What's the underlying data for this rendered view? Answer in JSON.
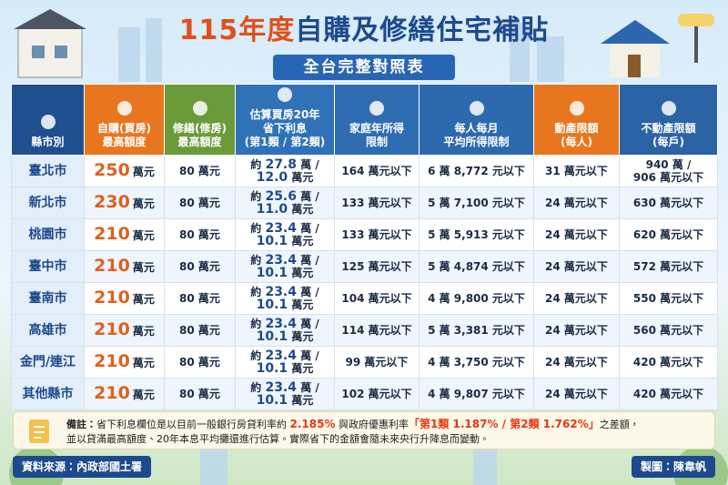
{
  "header": {
    "title": [
      "115年度",
      "自購及修繕住宅補貼"
    ],
    "subtitle": "全台完整對照表"
  },
  "table": {
    "columns": [
      [
        "縣市別"
      ],
      [
        "自購(買房)",
        "最高額度"
      ],
      [
        "修繕(修房)",
        "最高額度"
      ],
      [
        "估算買房20年",
        "省下利息",
        "(第1類 / 第2類)"
      ],
      [
        "家庭年所得",
        "限制"
      ],
      [
        "每人每月",
        "平均所得限制"
      ],
      [
        "動產限額",
        "(每人)"
      ],
      [
        "不動產限額",
        "(每戶)"
      ]
    ],
    "column_colors": [
      "#1f4f8f",
      "#e8761e",
      "#6b9a3b",
      "#2f72b8",
      "#2f6db2",
      "#2d69ad",
      "#e8761e",
      "#2b63a6"
    ],
    "rows": [
      {
        "city": "臺北市",
        "purchase": {
          "amount": "250",
          "unit": "萬元"
        },
        "repair": "80 萬元",
        "interest": {
          "prefix": "約",
          "first": "27.8",
          "first_unit": "萬 /",
          "second": "12.0",
          "second_unit": "萬元"
        },
        "household": "164 萬元以下",
        "monthly": "6 萬 8,772 元以下",
        "movable": "31 萬元以下",
        "immovable": [
          "940 萬 /",
          "906 萬元以下"
        ]
      },
      {
        "city": "新北市",
        "purchase": {
          "amount": "230",
          "unit": "萬元"
        },
        "repair": "80 萬元",
        "interest": {
          "prefix": "約",
          "first": "25.6",
          "first_unit": "萬 /",
          "second": "11.0",
          "second_unit": "萬元"
        },
        "household": "133 萬元以下",
        "monthly": "5 萬 7,100 元以下",
        "movable": "24 萬元以下",
        "immovable": [
          "630 萬元以下"
        ]
      },
      {
        "city": "桃園市",
        "purchase": {
          "amount": "210",
          "unit": "萬元"
        },
        "repair": "80 萬元",
        "interest": {
          "prefix": "約",
          "first": "23.4",
          "first_unit": "萬 /",
          "second": "10.1",
          "second_unit": "萬元"
        },
        "household": "133 萬元以下",
        "monthly": "5 萬 5,913 元以下",
        "movable": "24 萬元以下",
        "immovable": [
          "620 萬元以下"
        ]
      },
      {
        "city": "臺中市",
        "purchase": {
          "amount": "210",
          "unit": "萬元"
        },
        "repair": "80 萬元",
        "interest": {
          "prefix": "約",
          "first": "23.4",
          "first_unit": "萬 /",
          "second": "10.1",
          "second_unit": "萬元"
        },
        "household": "125 萬元以下",
        "monthly": "5 萬 4,874 元以下",
        "movable": "24 萬元以下",
        "immovable": [
          "572 萬元以下"
        ]
      },
      {
        "city": "臺南市",
        "purchase": {
          "amount": "210",
          "unit": "萬元"
        },
        "repair": "80 萬元",
        "interest": {
          "prefix": "約",
          "first": "23.4",
          "first_unit": "萬 /",
          "second": "10.1",
          "second_unit": "萬元"
        },
        "household": "104 萬元以下",
        "monthly": "4 萬 9,800 元以下",
        "movable": "24 萬元以下",
        "immovable": [
          "550 萬元以下"
        ]
      },
      {
        "city": "高雄市",
        "purchase": {
          "amount": "210",
          "unit": "萬元"
        },
        "repair": "80 萬元",
        "interest": {
          "prefix": "約",
          "first": "23.4",
          "first_unit": "萬 /",
          "second": "10.1",
          "second_unit": "萬元"
        },
        "household": "114 萬元以下",
        "monthly": "5 萬 3,381 元以下",
        "movable": "24 萬元以下",
        "immovable": [
          "560 萬元以下"
        ]
      },
      {
        "city": "金門/連江",
        "purchase": {
          "amount": "210",
          "unit": "萬元"
        },
        "repair": "80 萬元",
        "interest": {
          "prefix": "約",
          "first": "23.4",
          "first_unit": "萬 /",
          "second": "10.1",
          "second_unit": "萬元"
        },
        "household": "99 萬元以下",
        "monthly": "4 萬 3,750 元以下",
        "movable": "24 萬元以下",
        "immovable": [
          "420 萬元以下"
        ]
      },
      {
        "city": "其他縣市",
        "purchase": {
          "amount": "210",
          "unit": "萬元"
        },
        "repair": "80 萬元",
        "interest": {
          "prefix": "約",
          "first": "23.4",
          "first_unit": "萬 /",
          "second": "10.1",
          "second_unit": "萬元"
        },
        "household": "102 萬元以下",
        "monthly": "4 萬 9,807 元以下",
        "movable": "24 萬元以下",
        "immovable": [
          "420 萬元以下"
        ]
      }
    ]
  },
  "note": {
    "label": "備註：",
    "lines": [
      [
        {
          "text": "省下利息欄位是以目前一般銀行房貸利率約 "
        },
        {
          "text": "2.185%",
          "color": "#e8380d"
        },
        {
          "text": " 與政府優惠利率"
        },
        {
          "text": "「第1類 1.187% / 第2類 1.762%」",
          "color": "#e8380d"
        },
        {
          "text": "之差額，"
        }
      ],
      [
        {
          "text": "並以貸滿最高額度、20年本息平均攤還進行估算。實際省下的金額會隨未來央行升降息而變動。"
        }
      ]
    ]
  },
  "footer": {
    "source": "資料來源：內政部國土署",
    "credit": "製圖：陳韋帆"
  }
}
